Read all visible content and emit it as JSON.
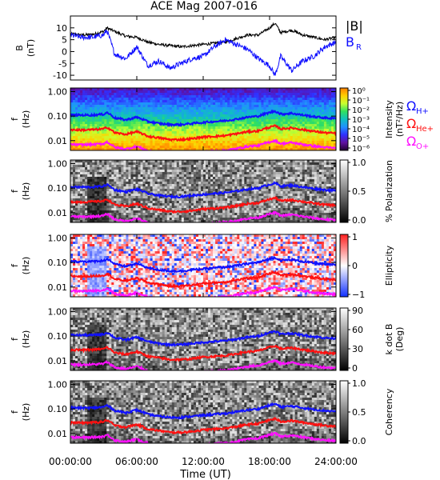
{
  "title": "ACE Mag 2007-016",
  "time_axis": {
    "label": "Time (UT)",
    "ticks": [
      "00:00:00",
      "06:00:00",
      "12:00:00",
      "18:00:00",
      "24:00:00"
    ],
    "range_hours": [
      0,
      24
    ]
  },
  "colors": {
    "H": "#1010ff",
    "He": "#ff1010",
    "O": "#ff10ff",
    "Btot": "#000000",
    "BR": "#1010ff"
  },
  "chart_data": [
    {
      "type": "line",
      "panel": "field",
      "ylabel": "B",
      "yunit": "(nT)",
      "ylim": [
        -12,
        15
      ],
      "yticks": [
        "10",
        "5",
        "0",
        "-5",
        "-10"
      ],
      "ytick_values": [
        10,
        5,
        0,
        -5,
        -10
      ],
      "legend": [
        "|B|",
        "B",
        "R"
      ],
      "x": [
        0,
        1,
        2,
        3,
        3.3,
        4,
        5,
        6,
        7,
        8,
        9,
        10,
        11,
        12,
        13,
        14,
        15,
        16,
        17,
        18,
        18.5,
        19,
        20,
        21,
        22,
        23,
        24
      ],
      "series": [
        {
          "name": "|B|",
          "values": [
            7.5,
            7,
            7.2,
            8.5,
            10,
            8.5,
            6.5,
            6,
            4,
            3,
            2.5,
            2,
            2.5,
            3,
            3.5,
            4,
            5.5,
            7,
            7,
            10,
            12,
            8,
            9,
            7,
            6,
            5,
            6
          ]
        },
        {
          "name": "B",
          "values": [
            7,
            6,
            6,
            7,
            9,
            -1,
            -3,
            2,
            -6,
            -4,
            -7,
            -5,
            -3,
            -2,
            2,
            5,
            3,
            1,
            -3,
            -6,
            -10,
            -2,
            -8,
            -4,
            -2,
            2,
            4
          ]
        }
      ]
    },
    {
      "type": "heatmap",
      "panel": "power-spectrum",
      "ylabel": "f",
      "yunit": "(Hz)",
      "yticks": [
        "1.00",
        "0.10",
        "0.01"
      ],
      "colorbar_label": "Intensity",
      "colorbar_unit": "(nT²/Hz)",
      "colorbar_ticks": [
        "10⁰",
        "10⁻¹",
        "10⁻²",
        "10⁻³",
        "10⁻⁴",
        "10⁻⁵",
        "10⁻⁶"
      ],
      "colorbar_values": [
        1,
        0.1,
        0.01,
        0.001,
        0.0001,
        1e-05,
        1e-06
      ],
      "legend": [
        "ΩH+",
        "ΩHe+",
        "ΩO+"
      ]
    },
    {
      "type": "heatmap",
      "panel": "polarization",
      "ylabel": "f",
      "yunit": "(Hz)",
      "yticks": [
        "1.00",
        "0.10",
        "0.01"
      ],
      "colorbar_label": "% Polarization",
      "colorbar_ticks": [
        "1.0",
        "0.5",
        "0.0"
      ],
      "colorbar_values": [
        1,
        0.5,
        0
      ]
    },
    {
      "type": "heatmap",
      "panel": "ellipticity",
      "ylabel": "f",
      "yunit": "(Hz)",
      "yticks": [
        "1.00",
        "0.10",
        "0.01"
      ],
      "colorbar_label": "Ellipticity",
      "colorbar_ticks": [
        "1",
        "0",
        "−1"
      ],
      "colorbar_values": [
        1,
        0,
        -1
      ]
    },
    {
      "type": "heatmap",
      "panel": "wave-normal-angle",
      "ylabel": "f",
      "yunit": "(Hz)",
      "yticks": [
        "1.00",
        "0.10",
        "0.01"
      ],
      "colorbar_label": "k dot B",
      "colorbar_unit": "(Deg)",
      "colorbar_ticks": [
        "90",
        "60",
        "30",
        "0"
      ],
      "colorbar_values": [
        90,
        60,
        30,
        0
      ]
    },
    {
      "type": "heatmap",
      "panel": "coherency",
      "ylabel": "f",
      "yunit": "(Hz)",
      "yticks": [
        "1.00",
        "0.10",
        "0.01"
      ],
      "colorbar_label": "Coherency",
      "colorbar_ticks": [
        "1.0",
        "0.5",
        "0.0"
      ],
      "colorbar_values": [
        1,
        0.5,
        0
      ]
    }
  ],
  "gyrofrequency_curves": {
    "x": [
      0,
      1,
      2,
      3,
      3.3,
      4,
      5,
      6,
      7,
      8,
      9,
      10,
      11,
      12,
      13,
      14,
      15,
      16,
      17,
      18,
      18.5,
      19,
      20,
      21,
      22,
      23,
      24
    ],
    "H": [
      0.11,
      0.11,
      0.11,
      0.12,
      0.14,
      0.085,
      0.07,
      0.09,
      0.06,
      0.05,
      0.045,
      0.045,
      0.05,
      0.055,
      0.06,
      0.065,
      0.075,
      0.09,
      0.1,
      0.14,
      0.16,
      0.12,
      0.13,
      0.11,
      0.095,
      0.085,
      0.08
    ],
    "He": [
      0.028,
      0.027,
      0.028,
      0.03,
      0.035,
      0.021,
      0.018,
      0.023,
      0.015,
      0.013,
      0.011,
      0.011,
      0.012,
      0.014,
      0.015,
      0.016,
      0.019,
      0.023,
      0.025,
      0.035,
      0.04,
      0.03,
      0.033,
      0.028,
      0.024,
      0.021,
      0.02
    ],
    "O": [
      0.007,
      0.0068,
      0.007,
      0.0075,
      0.0088,
      0.0053,
      0.0045,
      0.0058,
      0.0038,
      0.0032,
      0.0028,
      0.0028,
      0.003,
      0.0035,
      0.0038,
      0.004,
      0.0047,
      0.0058,
      0.0063,
      0.0088,
      0.01,
      0.0075,
      0.0083,
      0.007,
      0.006,
      0.0053,
      0.005
    ]
  }
}
